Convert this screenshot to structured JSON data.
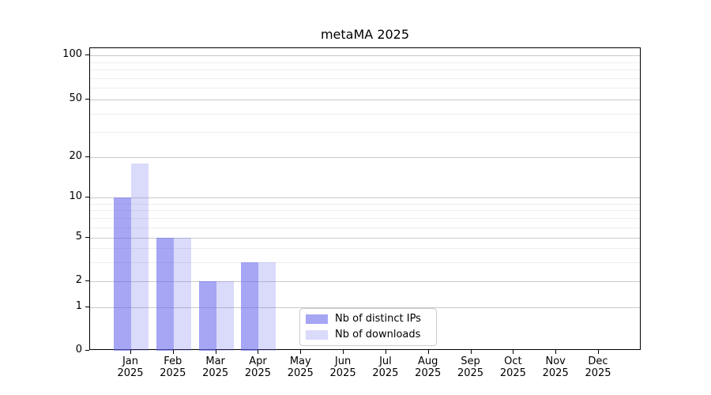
{
  "chart_data": {
    "type": "bar",
    "title": "metaMA 2025",
    "categories": [
      "Jan",
      "Feb",
      "Mar",
      "Apr",
      "May",
      "Jun",
      "Jul",
      "Aug",
      "Sep",
      "Oct",
      "Nov",
      "Dec"
    ],
    "year": "2025",
    "series": [
      {
        "name": "Nb of distinct IPs",
        "color": "#6666ee",
        "fill_opacity": 0.58,
        "values": [
          10,
          5,
          2,
          3,
          0,
          0,
          0,
          0,
          0,
          0,
          0,
          0
        ]
      },
      {
        "name": "Nb of downloads",
        "color": "#6666ee",
        "fill_opacity": 0.24,
        "values": [
          18,
          5,
          2,
          3,
          0,
          0,
          0,
          0,
          0,
          0,
          0,
          0
        ]
      }
    ],
    "yticks": [
      0,
      1,
      2,
      5,
      10,
      20,
      50,
      100
    ],
    "y_minor_gridlines": [
      3,
      4,
      6,
      7,
      8,
      9,
      30,
      40,
      60,
      70,
      80,
      90
    ],
    "scale": "symlog-like (log above 1, compressed linear below 1)",
    "ylim": [
      0,
      112
    ],
    "xlabel": "",
    "ylabel": "",
    "grid": true,
    "legend_position": "lower center"
  },
  "colors": {
    "grid_major": "#c9c9c9",
    "grid_minor": "#ededed",
    "axis": "#000000",
    "legend_border": "#cccccc"
  }
}
